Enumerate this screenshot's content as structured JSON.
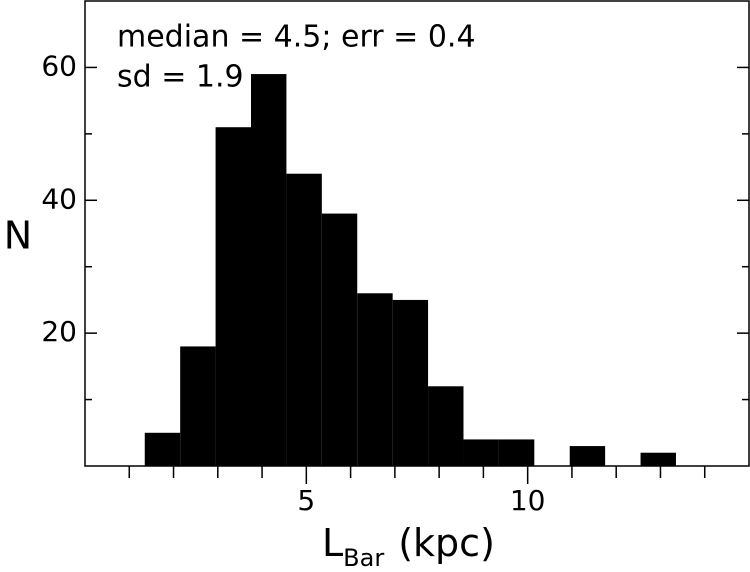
{
  "chart_data": {
    "type": "histogram",
    "annotations": [
      "median = 4.5; err = 0.4",
      "sd = 1.9"
    ],
    "ylabel": "N",
    "xlabel": {
      "main": "L",
      "sub": "Bar",
      "unit": "(kpc)"
    },
    "bins": [
      1.35,
      2.15,
      2.95,
      3.75,
      4.55,
      5.35,
      6.15,
      6.95,
      7.75,
      8.55,
      9.35,
      10.15,
      10.95,
      11.75,
      12.55,
      13.35
    ],
    "values": [
      5,
      18,
      51,
      59,
      44,
      38,
      26,
      25,
      12,
      4,
      4,
      0,
      3,
      0,
      2
    ],
    "color": "#000000",
    "xlim": [
      0,
      15
    ],
    "xticks": [
      5,
      10
    ],
    "xminorticks": [
      1,
      2,
      3,
      4,
      6,
      7,
      8,
      9,
      11,
      12,
      13,
      14
    ],
    "ylim": [
      0,
      70
    ],
    "yticks": [
      20,
      40,
      60
    ],
    "yminorticks": [
      10,
      30,
      50
    ]
  }
}
